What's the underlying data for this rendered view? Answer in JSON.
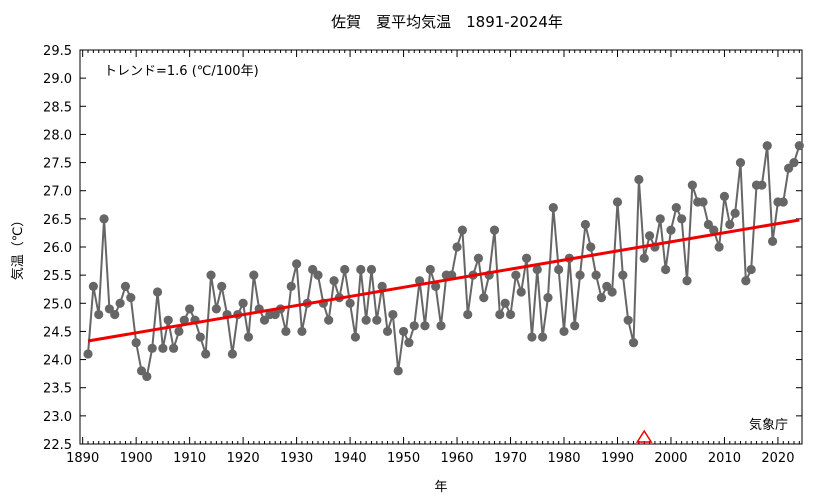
{
  "chart_data": {
    "type": "line",
    "title": "佐賀　夏平均気温　1891-2024年",
    "xlabel": "年",
    "ylabel": "気温（℃）",
    "xlim": [
      1889.5,
      2024.5
    ],
    "ylim": [
      22.5,
      29.5
    ],
    "xticks": [
      1890,
      1900,
      1910,
      1920,
      1930,
      1940,
      1950,
      1960,
      1970,
      1980,
      1990,
      2000,
      2010,
      2020
    ],
    "yticks": [
      22.5,
      23.0,
      23.5,
      24.0,
      24.5,
      25.0,
      25.5,
      26.0,
      26.5,
      27.0,
      27.5,
      28.0,
      28.5,
      29.0,
      29.5
    ],
    "ytick_labels": [
      "22.5",
      "23.0",
      "23.5",
      "24.0",
      "24.5",
      "25.0",
      "25.5",
      "26.0",
      "26.5",
      "27.0",
      "27.5",
      "28.0",
      "28.5",
      "29.0",
      "29.5"
    ],
    "trend_label": "トレンド=1.6 (℃/100年)",
    "source_label": "気象庁",
    "series": [
      {
        "color": "#666666",
        "x": [
          1891,
          1892,
          1893,
          1894,
          1895,
          1896,
          1897,
          1898,
          1899,
          1900,
          1901,
          1902,
          1903,
          1904,
          1905,
          1906,
          1907,
          1908,
          1909,
          1910,
          1911,
          1912,
          1913,
          1914,
          1915,
          1916,
          1917,
          1918,
          1919,
          1920,
          1921,
          1922,
          1923,
          1924,
          1925,
          1926,
          1927,
          1928,
          1929,
          1930,
          1931,
          1932,
          1933,
          1934,
          1935,
          1936,
          1937,
          1938,
          1939,
          1940,
          1941,
          1942,
          1943,
          1944,
          1945,
          1946,
          1947,
          1948,
          1949,
          1950,
          1951,
          1952,
          1953,
          1954,
          1955,
          1956,
          1957,
          1958,
          1959,
          1960,
          1961,
          1962,
          1963,
          1964,
          1965,
          1966,
          1967,
          1968,
          1969,
          1970,
          1971,
          1972,
          1973,
          1974,
          1975,
          1976,
          1977,
          1978,
          1979,
          1980,
          1981,
          1982,
          1983,
          1984,
          1985,
          1986,
          1987,
          1988,
          1989,
          1990,
          1991,
          1992,
          1993,
          1994,
          1995,
          1996,
          1997,
          1998,
          1999,
          2000,
          2001,
          2002,
          2003,
          2004,
          2005,
          2006,
          2007,
          2008,
          2009,
          2010,
          2011,
          2012,
          2013,
          2014,
          2015,
          2016,
          2017,
          2018,
          2019,
          2020,
          2021,
          2022,
          2023,
          2024
        ],
        "y": [
          24.1,
          25.3,
          24.8,
          26.5,
          24.9,
          24.8,
          25.0,
          25.3,
          25.1,
          24.3,
          23.8,
          23.7,
          24.2,
          25.2,
          24.2,
          24.7,
          24.2,
          24.5,
          24.7,
          24.9,
          24.7,
          24.4,
          24.1,
          25.5,
          24.9,
          25.3,
          24.8,
          24.1,
          24.8,
          25.0,
          24.4,
          25.5,
          24.9,
          24.7,
          24.8,
          24.8,
          24.9,
          24.5,
          25.3,
          25.7,
          24.5,
          25.0,
          25.6,
          25.5,
          25.0,
          24.7,
          25.4,
          25.1,
          25.6,
          25.0,
          24.4,
          25.6,
          24.7,
          25.6,
          24.7,
          25.3,
          24.5,
          24.8,
          23.8,
          24.5,
          24.3,
          24.6,
          25.4,
          24.6,
          25.6,
          25.3,
          24.6,
          25.5,
          25.5,
          26.0,
          26.3,
          24.8,
          25.5,
          25.8,
          25.1,
          25.5,
          26.3,
          24.8,
          25.0,
          24.8,
          25.5,
          25.2,
          25.8,
          24.4,
          25.6,
          24.4,
          25.1,
          26.7,
          25.6,
          24.5,
          25.8,
          24.6,
          25.5,
          26.4,
          26.0,
          25.5,
          25.1,
          25.3,
          25.2,
          26.8,
          25.5,
          24.7,
          24.3,
          27.2,
          25.8,
          26.2,
          26.0,
          26.5,
          25.6,
          26.3,
          26.7,
          26.5,
          25.4,
          27.1,
          26.8,
          26.8,
          26.4,
          26.3,
          26.0,
          26.9,
          26.4,
          26.6,
          27.5,
          25.4,
          25.6,
          27.1,
          27.1,
          27.8,
          26.1,
          26.8,
          26.8,
          27.4,
          27.5,
          27.8
        ]
      }
    ],
    "trend_line": {
      "color": "#ee0000",
      "x": [
        1891,
        2024
      ],
      "y": [
        24.33,
        26.48
      ]
    },
    "markers": [
      {
        "shape": "triangle",
        "color": "#ee0000",
        "x": 1995
      }
    ]
  }
}
